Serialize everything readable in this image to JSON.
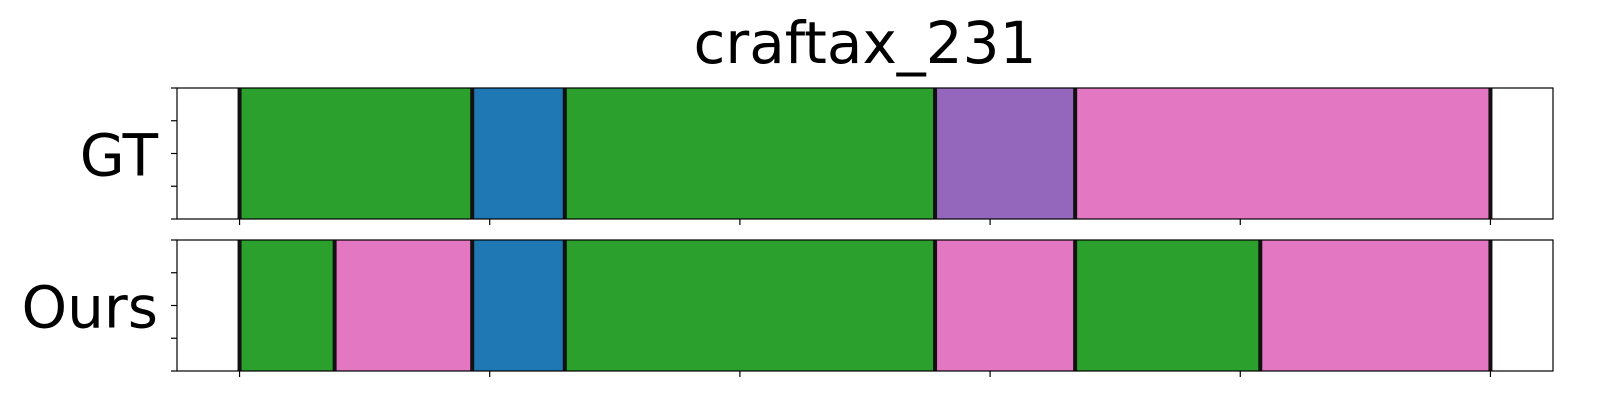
{
  "chart_data": {
    "type": "bar",
    "title": "craftax_231",
    "xlim": [
      -25,
      525
    ],
    "x_ticks": [
      0,
      100,
      200,
      300,
      400,
      500
    ],
    "y_ticks_per_row": 5,
    "rows": [
      {
        "label": "GT",
        "segments": [
          {
            "start": 0,
            "end": 93,
            "color": "#2ca02c"
          },
          {
            "start": 93,
            "end": 130,
            "color": "#1f77b4"
          },
          {
            "start": 130,
            "end": 278,
            "color": "#2ca02c"
          },
          {
            "start": 278,
            "end": 334,
            "color": "#9467bd"
          },
          {
            "start": 334,
            "end": 500,
            "color": "#e377c2"
          }
        ]
      },
      {
        "label": "Ours",
        "segments": [
          {
            "start": 0,
            "end": 38,
            "color": "#2ca02c"
          },
          {
            "start": 38,
            "end": 93,
            "color": "#e377c2"
          },
          {
            "start": 93,
            "end": 130,
            "color": "#1f77b4"
          },
          {
            "start": 130,
            "end": 278,
            "color": "#2ca02c"
          },
          {
            "start": 278,
            "end": 334,
            "color": "#e377c2"
          },
          {
            "start": 334,
            "end": 408,
            "color": "#2ca02c"
          },
          {
            "start": 408,
            "end": 500,
            "color": "#e377c2"
          }
        ]
      }
    ]
  }
}
